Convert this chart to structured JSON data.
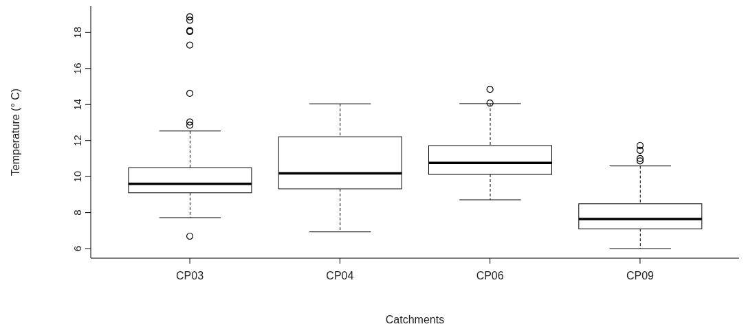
{
  "chart_data": {
    "type": "box",
    "categories": [
      "CP03",
      "CP04",
      "CP06",
      "CP09"
    ],
    "xlabel": "Catchments",
    "ylabel": "Temperature (° C)",
    "color": "#000000",
    "marker": "circle",
    "boxes": [
      {
        "low": 7.72,
        "q1": 9.1,
        "median": 9.6,
        "q3": 10.49,
        "high": 12.53,
        "outliers": [
          6.69,
          12.85,
          13.03,
          14.62,
          17.3,
          18.05,
          18.1,
          18.68,
          18.87
        ]
      },
      {
        "low": 6.93,
        "q1": 9.32,
        "median": 10.18,
        "q3": 12.21,
        "high": 14.04
      },
      {
        "low": 8.71,
        "q1": 10.12,
        "median": 10.76,
        "q3": 11.72,
        "high": 14.05,
        "outliers": [
          14.08,
          14.84
        ]
      },
      {
        "low": 6.0,
        "q1": 7.1,
        "median": 7.64,
        "q3": 8.49,
        "high": 10.59,
        "outliers": [
          10.87,
          11.0,
          11.46,
          11.73
        ]
      }
    ],
    "ylim": [
      5.47,
      19.46
    ],
    "yticks": [
      6,
      8,
      10,
      12,
      14,
      16,
      18
    ]
  }
}
